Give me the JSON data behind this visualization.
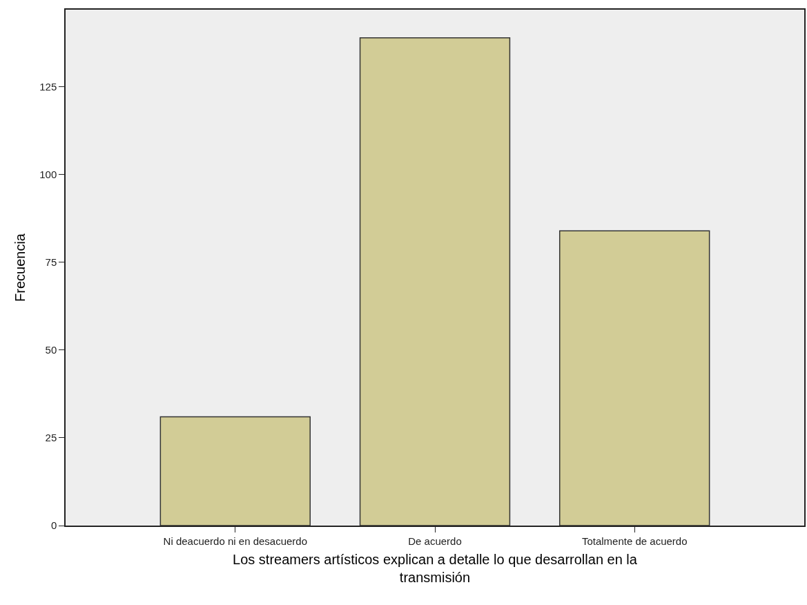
{
  "chart_data": {
    "type": "bar",
    "categories": [
      "Ni deacuerdo ni en desacuerdo",
      "De acuerdo",
      "Totalmente de acuerdo"
    ],
    "values": [
      31,
      139,
      84
    ],
    "color": "#d2cc96",
    "xlabel": "Los streamers artísticos explican a detalle lo que desarrollan en la transmisión",
    "ylabel": "Frecuencia",
    "ylim": [
      0,
      147
    ],
    "yticks": [
      0,
      25,
      50,
      75,
      100,
      125
    ],
    "grid": false
  }
}
